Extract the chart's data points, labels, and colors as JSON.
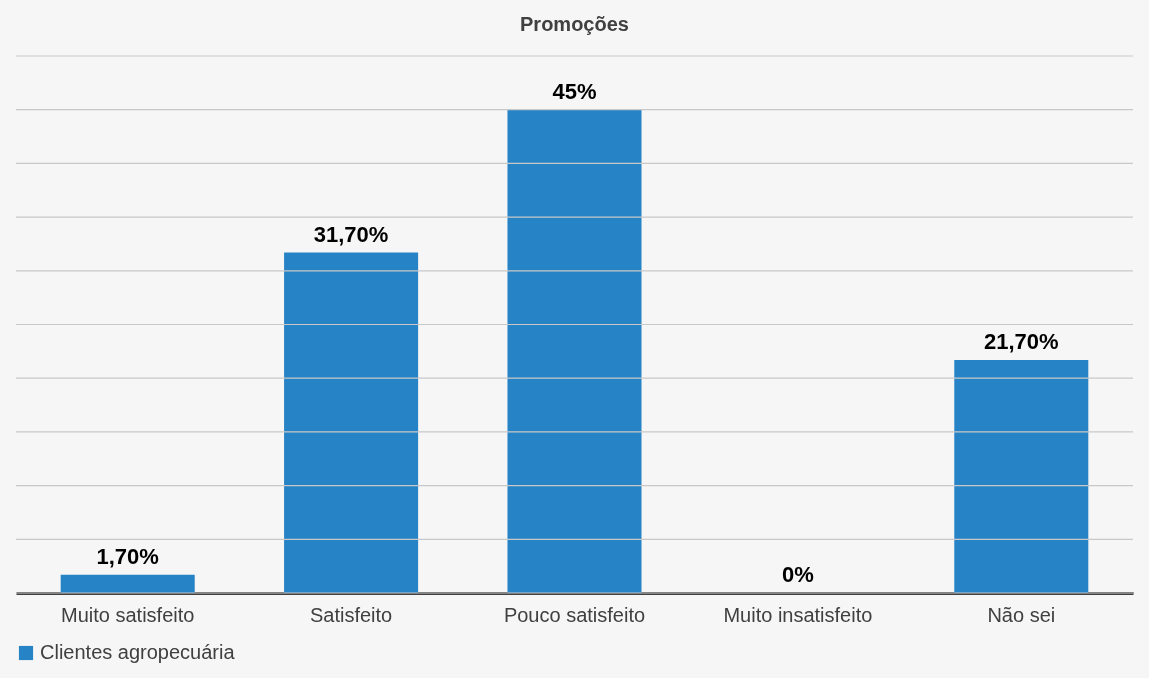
{
  "chart_data": {
    "type": "bar",
    "title": "Promoções",
    "categories": [
      "Muito satisfeito",
      "Satisfeito",
      "Pouco satisfeito",
      "Muito insatisfeito",
      "Não sei"
    ],
    "series": [
      {
        "name": "Clientes agropecuária",
        "color": "#2683c6",
        "values": [
          1.7,
          31.7,
          45,
          0,
          21.7
        ],
        "value_labels": [
          "1,70%",
          "31,70%",
          "45%",
          "0%",
          "21,70%"
        ]
      }
    ],
    "ylim": [
      0,
      50
    ],
    "yticks": [
      {
        "value": 0,
        "label": null
      },
      {
        "value": 5,
        "label": null
      },
      {
        "value": 10,
        "label": null
      },
      {
        "value": 15,
        "label": null
      },
      {
        "value": 20,
        "label": null
      },
      {
        "value": 25,
        "label": null
      },
      {
        "value": 30,
        "label": null
      },
      {
        "value": 35,
        "label": null
      },
      {
        "value": 40,
        "label": null
      },
      {
        "value": 45,
        "label": null
      },
      {
        "value": 50,
        "label": null
      }
    ],
    "grid": "y",
    "legend": "bottom",
    "tick_labels": "x"
  }
}
